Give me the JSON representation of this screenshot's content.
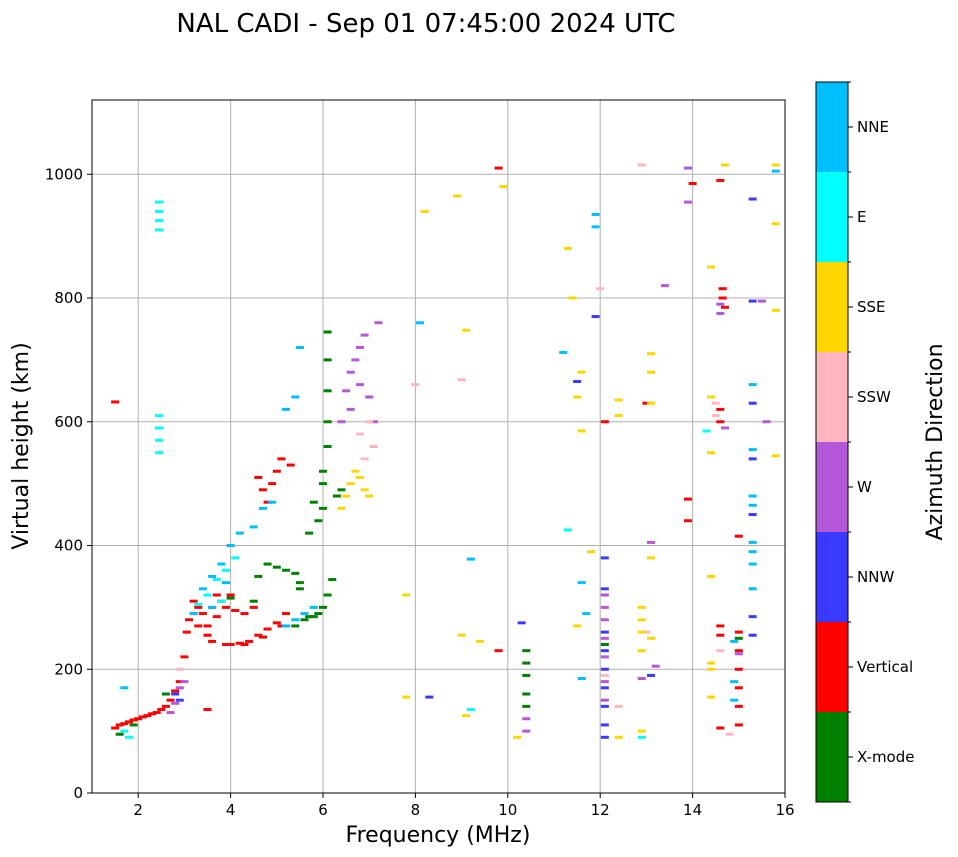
{
  "chart_data": {
    "type": "scatter",
    "title": "NAL CADI - Sep 01 07:45:00 2024 UTC",
    "xlabel": "Frequency (MHz)",
    "ylabel": "Virtual height (km)",
    "xlim": [
      1,
      16
    ],
    "ylim": [
      0,
      1120
    ],
    "xticks": [
      2,
      4,
      6,
      8,
      10,
      12,
      14,
      16
    ],
    "yticks": [
      0,
      200,
      400,
      600,
      800,
      1000
    ],
    "grid": true,
    "colorbar": {
      "label": "Azimuth Direction",
      "placement": "right",
      "categories": [
        {
          "name": "X-mode",
          "color": "#008000"
        },
        {
          "name": "Vertical",
          "color": "#ff0000"
        },
        {
          "name": "NNW",
          "color": "#3a3aff"
        },
        {
          "name": "W",
          "color": "#b557d9"
        },
        {
          "name": "SSW",
          "color": "#ffb6c1"
        },
        {
          "name": "SSE",
          "color": "#ffd700"
        },
        {
          "name": "E",
          "color": "#00ffff"
        },
        {
          "name": "NNE",
          "color": "#00bfff"
        }
      ]
    },
    "series": [
      {
        "name": "Vertical",
        "color": "#ff0000",
        "points": [
          [
            1.5,
            105
          ],
          [
            1.6,
            110
          ],
          [
            1.7,
            112
          ],
          [
            1.8,
            115
          ],
          [
            1.9,
            118
          ],
          [
            2.0,
            120
          ],
          [
            2.1,
            123
          ],
          [
            2.2,
            125
          ],
          [
            2.3,
            128
          ],
          [
            2.4,
            130
          ],
          [
            2.5,
            135
          ],
          [
            2.6,
            140
          ],
          [
            2.7,
            150
          ],
          [
            2.8,
            165
          ],
          [
            2.9,
            180
          ],
          [
            3.0,
            220
          ],
          [
            3.05,
            260
          ],
          [
            3.1,
            280
          ],
          [
            3.2,
            290
          ],
          [
            3.3,
            300
          ],
          [
            3.4,
            290
          ],
          [
            3.5,
            270
          ],
          [
            3.6,
            300
          ],
          [
            3.7,
            285
          ],
          [
            3.8,
            310
          ],
          [
            3.9,
            300
          ],
          [
            4.0,
            240
          ],
          [
            4.2,
            242
          ],
          [
            4.4,
            245
          ],
          [
            4.6,
            255
          ],
          [
            4.8,
            265
          ],
          [
            5.0,
            275
          ],
          [
            5.2,
            290
          ],
          [
            3.3,
            270
          ],
          [
            3.5,
            255
          ],
          [
            3.7,
            320
          ],
          [
            4.0,
            320
          ],
          [
            4.1,
            295
          ],
          [
            4.3,
            290
          ],
          [
            4.5,
            300
          ],
          [
            4.7,
            490
          ],
          [
            4.9,
            500
          ],
          [
            5.0,
            520
          ],
          [
            5.1,
            540
          ],
          [
            4.8,
            470
          ],
          [
            4.6,
            510
          ],
          [
            5.3,
            530
          ],
          [
            3.2,
            310
          ],
          [
            3.6,
            245
          ],
          [
            3.9,
            240
          ],
          [
            4.3,
            240
          ],
          [
            4.7,
            252
          ],
          [
            5.1,
            270
          ],
          [
            1.5,
            632
          ],
          [
            3.5,
            135
          ],
          [
            14.0,
            985
          ],
          [
            14.6,
            990
          ],
          [
            14.65,
            815
          ],
          [
            14.65,
            800
          ],
          [
            14.7,
            785
          ],
          [
            14.6,
            620
          ],
          [
            14.6,
            600
          ],
          [
            13.9,
            475
          ],
          [
            13.9,
            440
          ],
          [
            15.0,
            415
          ],
          [
            14.6,
            270
          ],
          [
            14.6,
            255
          ],
          [
            15.0,
            260
          ],
          [
            15.0,
            230
          ],
          [
            15.0,
            200
          ],
          [
            15.0,
            170
          ],
          [
            15.0,
            140
          ],
          [
            15.0,
            110
          ],
          [
            14.6,
            105
          ],
          [
            9.8,
            1010
          ],
          [
            9.8,
            230
          ],
          [
            12.1,
            600
          ],
          [
            13.0,
            630
          ]
        ]
      },
      {
        "name": "X-mode",
        "color": "#008000",
        "points": [
          [
            1.6,
            95
          ],
          [
            1.9,
            110
          ],
          [
            2.6,
            160
          ],
          [
            5.4,
            270
          ],
          [
            5.6,
            280
          ],
          [
            5.8,
            285
          ],
          [
            6.0,
            300
          ],
          [
            6.1,
            320
          ],
          [
            6.2,
            345
          ],
          [
            5.7,
            285
          ],
          [
            5.9,
            290
          ],
          [
            4.8,
            370
          ],
          [
            5.0,
            365
          ],
          [
            5.2,
            360
          ],
          [
            5.4,
            355
          ],
          [
            4.6,
            350
          ],
          [
            5.5,
            340
          ],
          [
            5.7,
            420
          ],
          [
            5.9,
            440
          ],
          [
            6.0,
            460
          ],
          [
            5.8,
            470
          ],
          [
            6.0,
            500
          ],
          [
            6.0,
            520
          ],
          [
            6.1,
            560
          ],
          [
            6.1,
            600
          ],
          [
            6.1,
            650
          ],
          [
            6.1,
            700
          ],
          [
            6.1,
            745
          ],
          [
            6.3,
            480
          ],
          [
            6.4,
            490
          ],
          [
            5.5,
            330
          ],
          [
            4.5,
            310
          ],
          [
            4.0,
            315
          ],
          [
            10.4,
            230
          ],
          [
            10.4,
            210
          ],
          [
            10.4,
            190
          ],
          [
            10.4,
            160
          ],
          [
            10.4,
            140
          ],
          [
            15.0,
            250
          ],
          [
            12.1,
            240
          ]
        ]
      },
      {
        "name": "NNW",
        "color": "#3a3aff",
        "points": [
          [
            2.8,
            160
          ],
          [
            2.9,
            150
          ],
          [
            12.1,
            380
          ],
          [
            12.1,
            330
          ],
          [
            12.1,
            260
          ],
          [
            12.1,
            230
          ],
          [
            12.1,
            200
          ],
          [
            12.1,
            170
          ],
          [
            12.1,
            140
          ],
          [
            12.1,
            110
          ],
          [
            12.1,
            90
          ],
          [
            11.5,
            665
          ],
          [
            11.9,
            770
          ],
          [
            13.1,
            190
          ],
          [
            15.3,
            960
          ],
          [
            15.3,
            795
          ],
          [
            15.3,
            630
          ],
          [
            15.3,
            540
          ],
          [
            15.3,
            450
          ],
          [
            15.3,
            285
          ],
          [
            15.3,
            255
          ],
          [
            10.3,
            275
          ],
          [
            8.3,
            155
          ]
        ]
      },
      {
        "name": "W",
        "color": "#b557d9",
        "points": [
          [
            2.9,
            170
          ],
          [
            3.0,
            180
          ],
          [
            2.8,
            145
          ],
          [
            2.7,
            130
          ],
          [
            6.5,
            650
          ],
          [
            6.6,
            680
          ],
          [
            6.7,
            700
          ],
          [
            6.8,
            720
          ],
          [
            6.9,
            740
          ],
          [
            6.6,
            620
          ],
          [
            6.4,
            600
          ],
          [
            6.8,
            660
          ],
          [
            7.0,
            640
          ],
          [
            7.1,
            600
          ],
          [
            7.2,
            760
          ],
          [
            12.1,
            320
          ],
          [
            12.1,
            300
          ],
          [
            12.1,
            280
          ],
          [
            12.1,
            250
          ],
          [
            12.1,
            220
          ],
          [
            12.1,
            180
          ],
          [
            12.1,
            150
          ],
          [
            13.1,
            405
          ],
          [
            13.2,
            205
          ],
          [
            13.4,
            820
          ],
          [
            13.9,
            955
          ],
          [
            13.9,
            1010
          ],
          [
            14.6,
            790
          ],
          [
            14.6,
            775
          ],
          [
            14.7,
            590
          ],
          [
            15.5,
            795
          ],
          [
            15.6,
            600
          ],
          [
            15.0,
            225
          ],
          [
            10.4,
            100
          ],
          [
            10.4,
            120
          ],
          [
            12.9,
            185
          ]
        ]
      },
      {
        "name": "SSW",
        "color": "#ffb6c1",
        "points": [
          [
            6.8,
            580
          ],
          [
            7.0,
            600
          ],
          [
            7.1,
            560
          ],
          [
            6.9,
            540
          ],
          [
            2.9,
            200
          ],
          [
            8.0,
            660
          ],
          [
            9.0,
            668
          ],
          [
            12.0,
            815
          ],
          [
            12.9,
            1015
          ],
          [
            14.5,
            630
          ],
          [
            14.5,
            610
          ],
          [
            14.6,
            230
          ],
          [
            14.8,
            95
          ],
          [
            12.4,
            140
          ],
          [
            12.1,
            190
          ],
          [
            13.0,
            260
          ]
        ]
      },
      {
        "name": "SSE",
        "color": "#ffd700",
        "points": [
          [
            6.5,
            480
          ],
          [
            6.6,
            500
          ],
          [
            6.7,
            520
          ],
          [
            6.8,
            510
          ],
          [
            6.4,
            460
          ],
          [
            6.9,
            490
          ],
          [
            7.0,
            480
          ],
          [
            8.2,
            940
          ],
          [
            8.9,
            965
          ],
          [
            9.1,
            748
          ],
          [
            9.9,
            980
          ],
          [
            11.3,
            880
          ],
          [
            11.4,
            800
          ],
          [
            11.5,
            640
          ],
          [
            11.6,
            585
          ],
          [
            11.6,
            680
          ],
          [
            11.8,
            390
          ],
          [
            11.5,
            270
          ],
          [
            12.4,
            635
          ],
          [
            12.4,
            610
          ],
          [
            13.1,
            710
          ],
          [
            13.1,
            680
          ],
          [
            13.1,
            630
          ],
          [
            13.1,
            380
          ],
          [
            13.1,
            250
          ],
          [
            12.9,
            300
          ],
          [
            12.9,
            280
          ],
          [
            12.9,
            260
          ],
          [
            12.9,
            230
          ],
          [
            12.9,
            100
          ],
          [
            14.4,
            850
          ],
          [
            14.4,
            640
          ],
          [
            14.4,
            550
          ],
          [
            14.4,
            350
          ],
          [
            14.4,
            210
          ],
          [
            14.4,
            200
          ],
          [
            14.4,
            155
          ],
          [
            14.7,
            1015
          ],
          [
            15.8,
            1015
          ],
          [
            15.8,
            920
          ],
          [
            15.8,
            780
          ],
          [
            15.8,
            545
          ],
          [
            9.0,
            255
          ],
          [
            9.4,
            245
          ],
          [
            9.1,
            125
          ],
          [
            10.2,
            90
          ],
          [
            12.4,
            90
          ],
          [
            7.8,
            320
          ],
          [
            7.8,
            155
          ]
        ]
      },
      {
        "name": "E",
        "color": "#00ffff",
        "points": [
          [
            2.45,
            955
          ],
          [
            2.45,
            940
          ],
          [
            2.45,
            925
          ],
          [
            2.45,
            910
          ],
          [
            2.45,
            610
          ],
          [
            2.45,
            590
          ],
          [
            2.45,
            570
          ],
          [
            2.45,
            550
          ],
          [
            3.3,
            305
          ],
          [
            3.5,
            320
          ],
          [
            3.7,
            345
          ],
          [
            3.9,
            360
          ],
          [
            4.1,
            380
          ],
          [
            3.8,
            310
          ],
          [
            1.8,
            90
          ],
          [
            1.7,
            100
          ],
          [
            11.3,
            425
          ],
          [
            12.9,
            90
          ],
          [
            9.2,
            135
          ],
          [
            14.3,
            585
          ]
        ]
      },
      {
        "name": "NNE",
        "color": "#00bfff",
        "points": [
          [
            3.4,
            330
          ],
          [
            3.6,
            350
          ],
          [
            3.8,
            370
          ],
          [
            4.0,
            400
          ],
          [
            4.2,
            420
          ],
          [
            3.9,
            340
          ],
          [
            3.6,
            300
          ],
          [
            3.2,
            290
          ],
          [
            5.2,
            270
          ],
          [
            5.4,
            280
          ],
          [
            5.6,
            290
          ],
          [
            5.8,
            300
          ],
          [
            4.5,
            430
          ],
          [
            4.7,
            460
          ],
          [
            4.9,
            470
          ],
          [
            5.5,
            720
          ],
          [
            5.2,
            620
          ],
          [
            5.4,
            640
          ],
          [
            11.9,
            935
          ],
          [
            11.9,
            915
          ],
          [
            11.2,
            712
          ],
          [
            11.6,
            340
          ],
          [
            11.7,
            290
          ],
          [
            11.6,
            185
          ],
          [
            15.3,
            660
          ],
          [
            15.3,
            555
          ],
          [
            15.3,
            480
          ],
          [
            15.3,
            465
          ],
          [
            15.3,
            405
          ],
          [
            15.3,
            390
          ],
          [
            15.3,
            370
          ],
          [
            15.3,
            330
          ],
          [
            15.8,
            1005
          ],
          [
            9.2,
            378
          ],
          [
            8.1,
            760
          ],
          [
            1.7,
            170
          ],
          [
            14.9,
            245
          ],
          [
            14.9,
            180
          ],
          [
            14.9,
            150
          ]
        ]
      }
    ]
  }
}
